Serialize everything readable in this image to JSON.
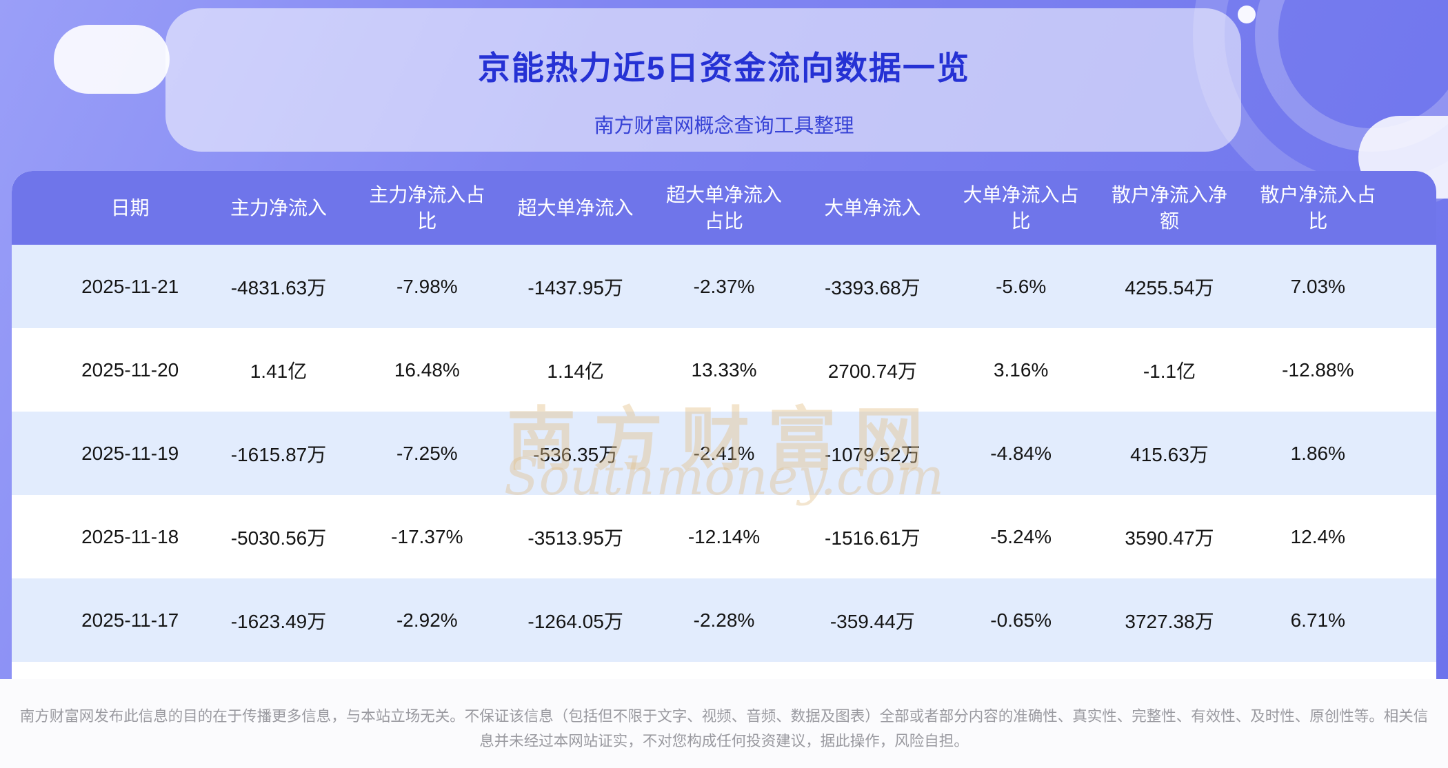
{
  "header": {
    "title": "京能热力近5日资金流向数据一览",
    "subtitle": "南方财富网概念查询工具整理"
  },
  "chart_data": {
    "type": "table",
    "title": "京能热力近5日资金流向数据一览",
    "columns": [
      "日期",
      "主力净流入",
      "主力净流入占比",
      "超大单净流入",
      "超大单净流入占比",
      "大单净流入",
      "大单净流入占比",
      "散户净流入净额",
      "散户净流入占比"
    ],
    "rows": [
      [
        "2025-11-21",
        "-4831.63万",
        "-7.98%",
        "-1437.95万",
        "-2.37%",
        "-3393.68万",
        "-5.6%",
        "4255.54万",
        "7.03%"
      ],
      [
        "2025-11-20",
        "1.41亿",
        "16.48%",
        "1.14亿",
        "13.33%",
        "2700.74万",
        "3.16%",
        "-1.1亿",
        "-12.88%"
      ],
      [
        "2025-11-19",
        "-1615.87万",
        "-7.25%",
        "-536.35万",
        "-2.41%",
        "-1079.52万",
        "-4.84%",
        "415.63万",
        "1.86%"
      ],
      [
        "2025-11-18",
        "-5030.56万",
        "-17.37%",
        "-3513.95万",
        "-12.14%",
        "-1516.61万",
        "-5.24%",
        "3590.47万",
        "12.4%"
      ],
      [
        "2025-11-17",
        "-1623.49万",
        "-2.92%",
        "-1264.05万",
        "-2.28%",
        "-359.44万",
        "-0.65%",
        "3727.38万",
        "6.71%"
      ]
    ]
  },
  "watermark": {
    "cn": "南方财富网",
    "en": "Southmoney.com"
  },
  "footer": {
    "disclaimer": "南方财富网发布此信息的目的在于传播更多信息，与本站立场无关。不保证该信息（包括但不限于文字、视频、音频、数据及图表）全部或者部分内容的准确性、真实性、完整性、有效性、及时性、原创性等。相关信息并未经过本网站证实，不对您构成任何投资建议，据此操作，风险自担。"
  },
  "colors": {
    "hero_background": "#8186f2",
    "title": "#2531d4",
    "subtitle": "#3743d6",
    "table_header_background": "#6f75ea",
    "table_header_text": "#ffffff",
    "row_alternate_background": "#e2ecfd",
    "cell_text": "#141414",
    "watermark": "#e2be86",
    "disclaimer_text": "#9a9aa0"
  }
}
